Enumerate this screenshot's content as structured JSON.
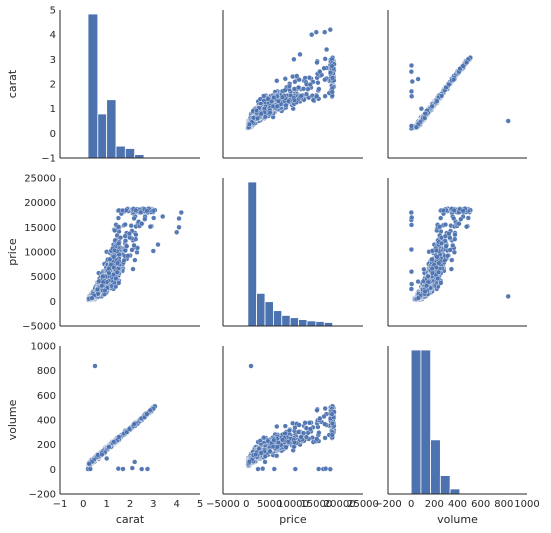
{
  "chart_data": {
    "type": "scatter",
    "kind": "pairplot",
    "variables": [
      "carat",
      "price",
      "volume"
    ],
    "colors": {
      "point": "#4c72b0",
      "bar": "#4c72b0",
      "bar_edge": "#ffffff",
      "axis": "#262626",
      "text": "#262626"
    },
    "axes": {
      "carat": {
        "label": "carat",
        "range": [
          -1,
          5
        ],
        "ticks": [
          -1,
          0,
          1,
          2,
          3,
          4,
          5
        ],
        "tick_labels": [
          "−1",
          "0",
          "1",
          "2",
          "3",
          "4",
          "5"
        ]
      },
      "price": {
        "label": "price",
        "range": [
          -5000,
          25000
        ],
        "ticks": [
          -5000,
          0,
          5000,
          10000,
          15000,
          20000,
          25000
        ],
        "tick_labels": [
          "−5000",
          "0",
          "5000",
          "10000",
          "15000",
          "20000",
          "25000"
        ]
      },
      "volume": {
        "label": "volume",
        "range": [
          -200,
          1000
        ],
        "ticks": [
          -200,
          0,
          200,
          400,
          600,
          800,
          1000
        ],
        "tick_labels": [
          "−200",
          "0",
          "200",
          "400",
          "600",
          "800",
          "1000"
        ]
      }
    },
    "histograms": {
      "carat": {
        "bins": [
          [
            0.2,
            0.62,
            4.25
          ],
          [
            0.62,
            1.0,
            1.3
          ],
          [
            1.0,
            1.4,
            1.72
          ],
          [
            1.4,
            1.8,
            0.35
          ],
          [
            1.8,
            2.2,
            0.28
          ],
          [
            2.2,
            2.6,
            0.1
          ],
          [
            2.6,
            3.0,
            0.02
          ],
          [
            3.0,
            4.5,
            0.005
          ]
        ]
      },
      "price": {
        "bins": [
          [
            326,
            2200,
            22500
          ],
          [
            2200,
            4000,
            5100
          ],
          [
            4000,
            5800,
            3800
          ],
          [
            5800,
            7600,
            2400
          ],
          [
            7600,
            9400,
            1650
          ],
          [
            9400,
            11200,
            1300
          ],
          [
            11200,
            13000,
            1000
          ],
          [
            13000,
            14900,
            800
          ],
          [
            14900,
            16700,
            700
          ],
          [
            16700,
            18500,
            550
          ]
        ]
      },
      "volume": {
        "bins": [
          [
            0,
            84,
            625
          ],
          [
            84,
            168,
            625
          ],
          [
            168,
            252,
            235
          ],
          [
            252,
            336,
            80
          ],
          [
            336,
            420,
            22
          ],
          [
            420,
            504,
            4
          ],
          [
            504,
            588,
            1
          ],
          [
            588,
            672,
            0.5
          ]
        ]
      }
    },
    "outliers": {
      "carat_volume": [
        [
          0.5,
          838
        ],
        [
          0.2,
          2
        ],
        [
          0.3,
          3
        ],
        [
          0.8,
          120
        ],
        [
          1.0,
          88
        ],
        [
          1.5,
          5
        ],
        [
          1.7,
          3
        ],
        [
          2.2,
          60
        ],
        [
          2.5,
          2
        ],
        [
          2.75,
          3
        ],
        [
          2.1,
          10
        ],
        [
          0.25,
          45
        ]
      ],
      "price_volume": [
        [
          1000,
          838
        ],
        [
          2000,
          120
        ],
        [
          2500,
          2
        ],
        [
          3500,
          5
        ],
        [
          4000,
          60
        ],
        [
          6000,
          3
        ],
        [
          6500,
          110
        ],
        [
          10500,
          2
        ],
        [
          15500,
          3
        ],
        [
          16500,
          2
        ],
        [
          17000,
          5
        ],
        [
          18000,
          1
        ]
      ],
      "price_carat_extra": [
        [
          14000,
          4.0
        ],
        [
          15000,
          4.1
        ],
        [
          16800,
          4.1
        ],
        [
          18000,
          4.2
        ],
        [
          11500,
          3.2
        ],
        [
          10200,
          3.0
        ],
        [
          17200,
          3.4
        ]
      ]
    }
  }
}
